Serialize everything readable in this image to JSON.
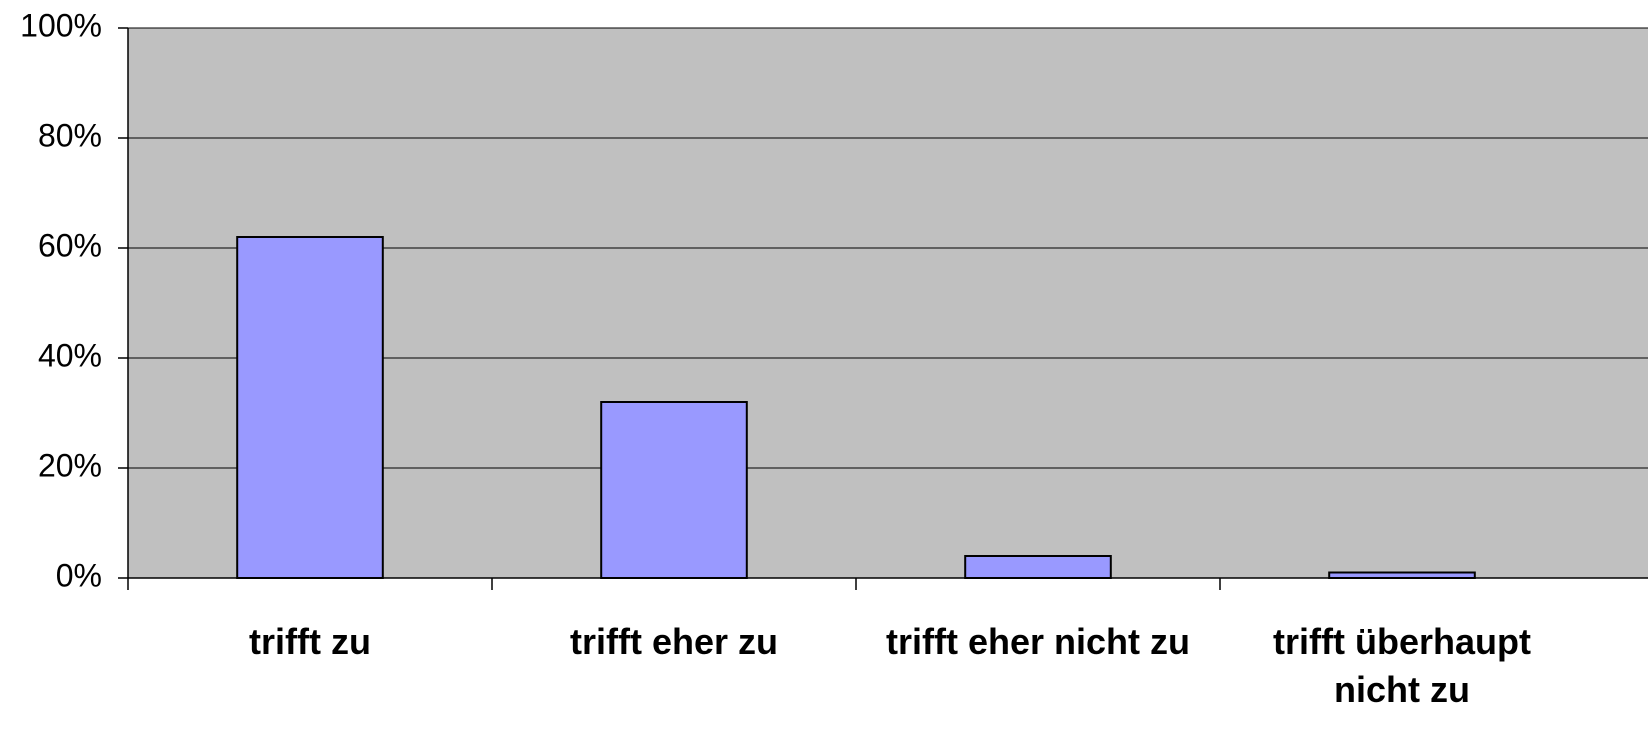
{
  "chart_data": {
    "type": "bar",
    "categories": [
      "trifft zu",
      "trifft eher zu",
      "trifft eher nicht zu",
      "trifft überhaupt nicht zu"
    ],
    "values": [
      62,
      32,
      4,
      1
    ],
    "color": "#9999ff",
    "ylim": [
      0,
      100
    ],
    "yticks": [
      {
        "value": 0,
        "label": "0%"
      },
      {
        "value": 20,
        "label": "20%"
      },
      {
        "value": 40,
        "label": "40%"
      },
      {
        "value": 60,
        "label": "60%"
      },
      {
        "value": 80,
        "label": "80%"
      },
      {
        "value": 100,
        "label": "100%"
      }
    ],
    "grid": true
  }
}
